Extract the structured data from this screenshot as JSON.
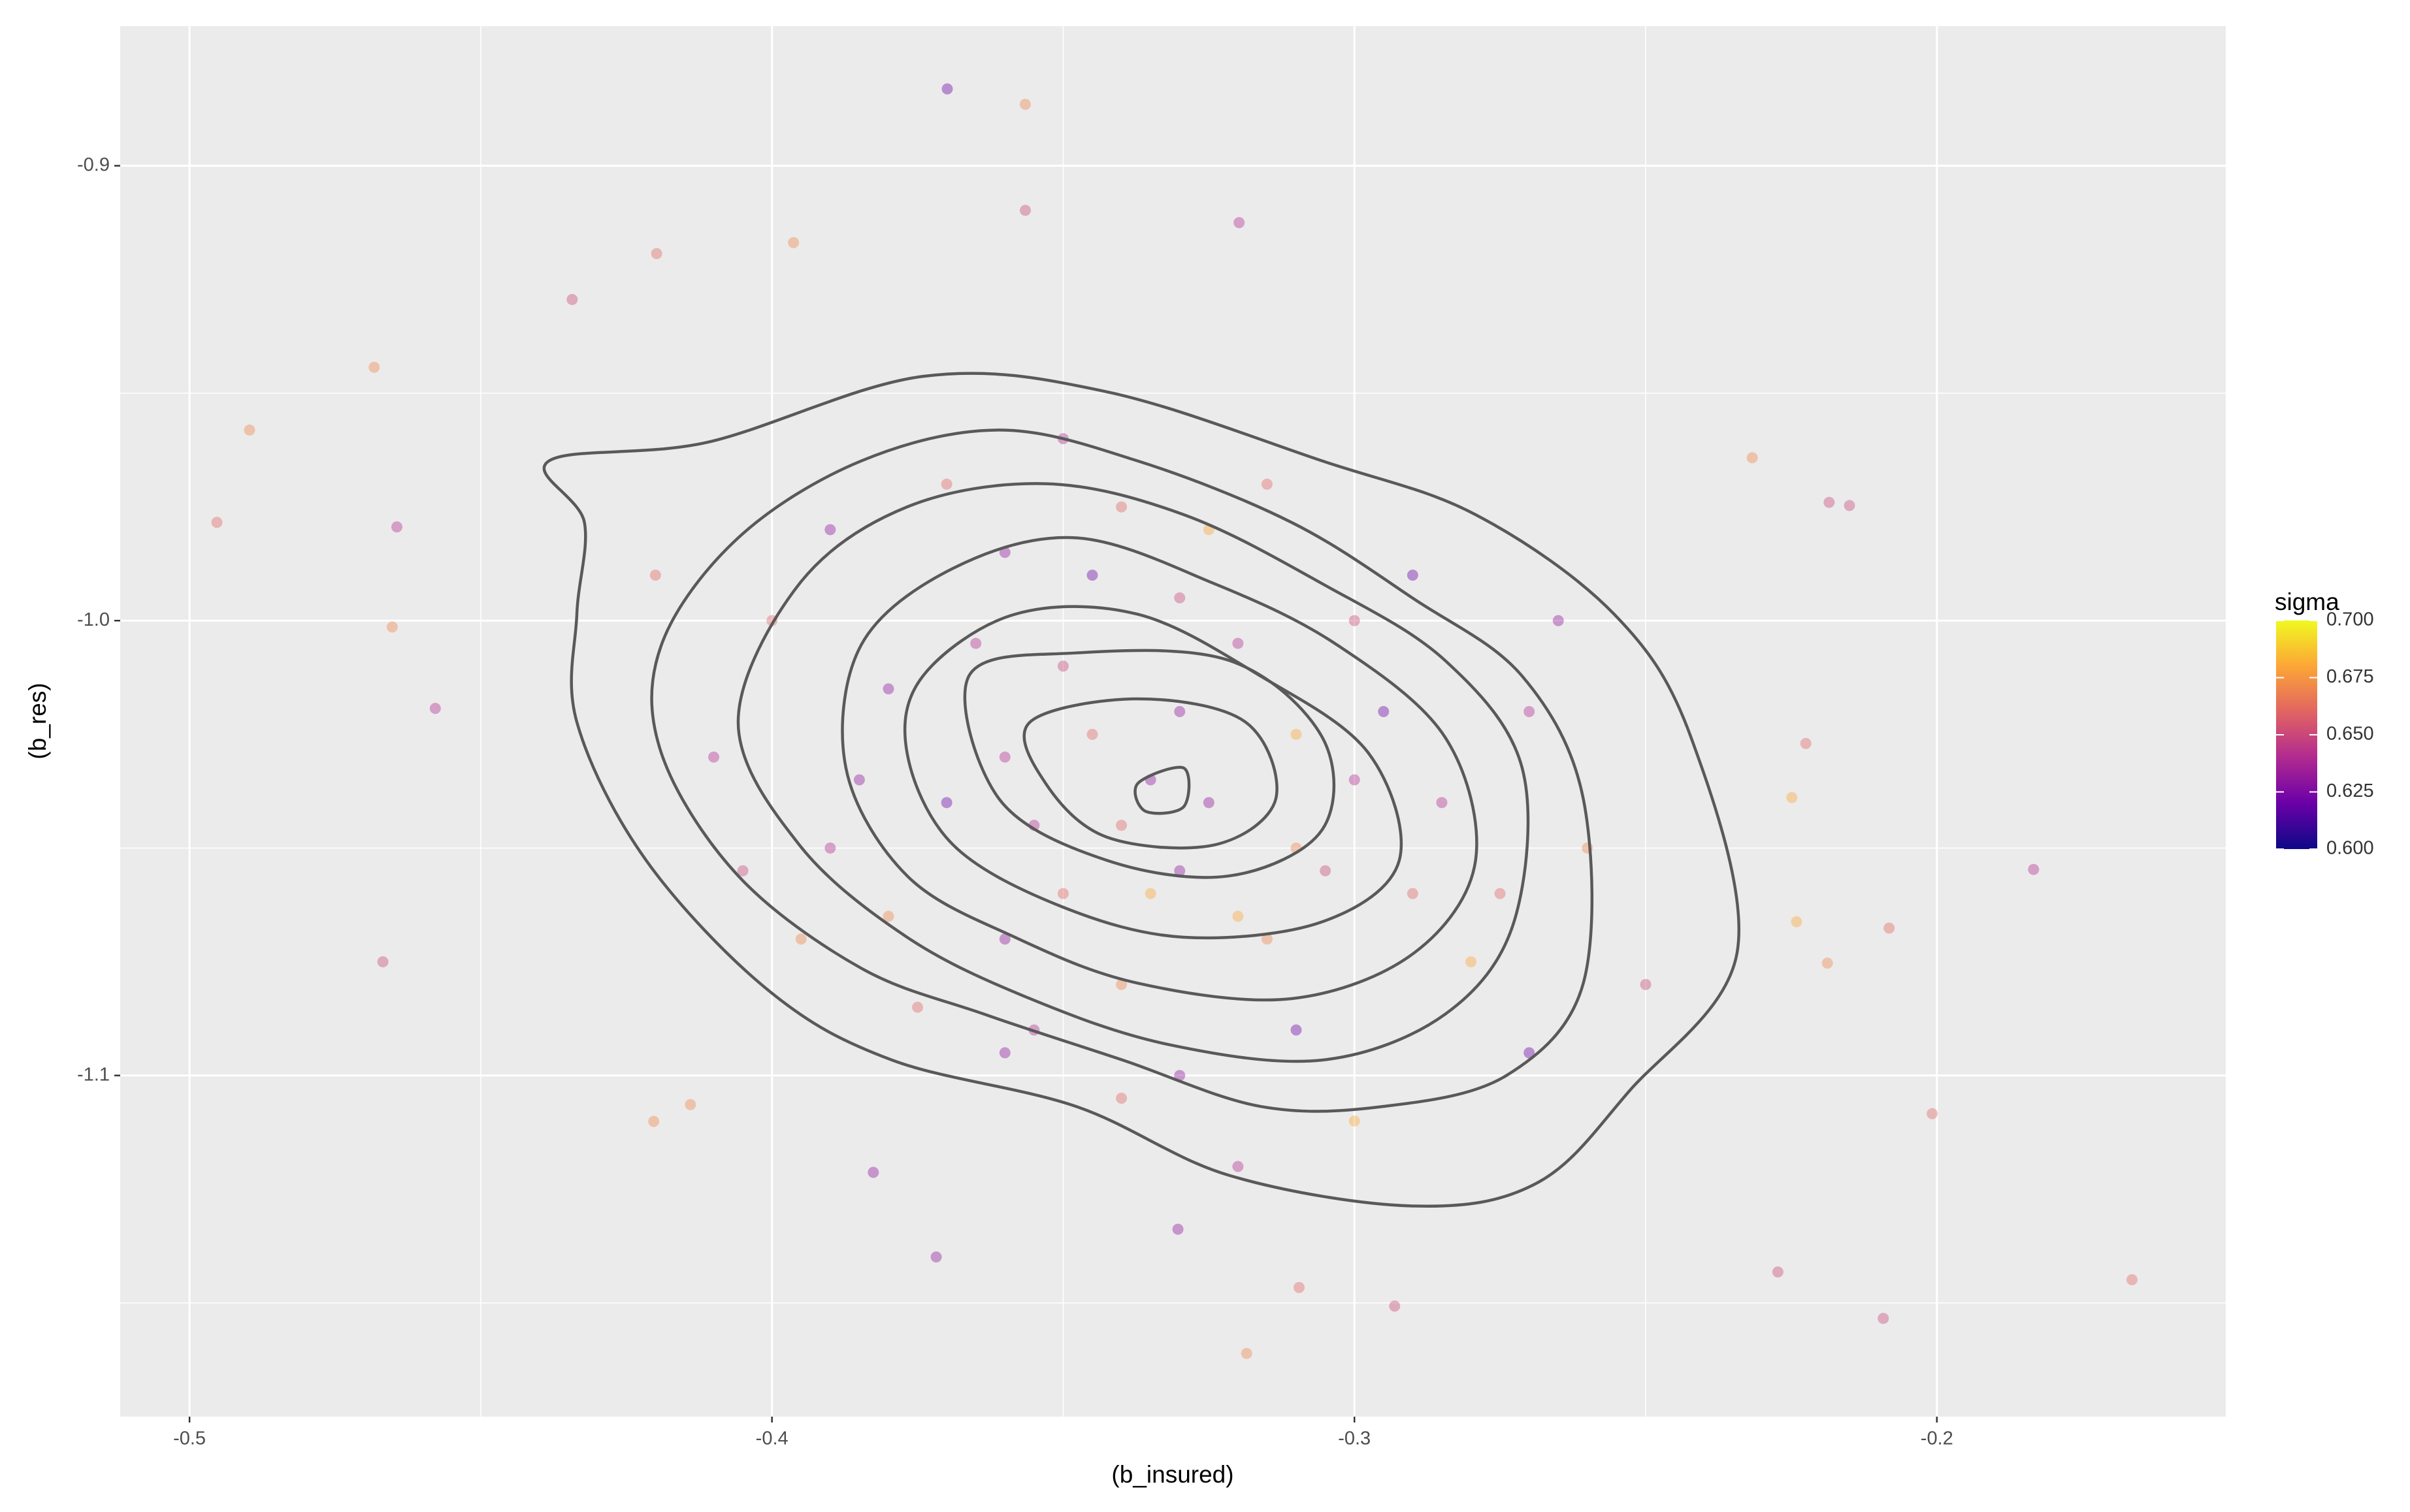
{
  "chart_data": {
    "type": "scatter",
    "x_label": "(b_insured)",
    "y_label": "(b_res)",
    "xlim": [
      -0.5119,
      -0.1504
    ],
    "ylim": [
      -1.175,
      -0.8693
    ],
    "xticks": [
      -0.5,
      -0.4,
      -0.3,
      -0.2
    ],
    "yticks": [
      -0.9,
      {
        "value": -1,
        "label": "-1.0"
      },
      -1.1
    ],
    "grid": true,
    "color_label": "sigma",
    "clim": [
      0.6,
      0.7
    ],
    "colorscale": [
      "#0d0887",
      "#6a00a8",
      "#b12a90",
      "#e16462",
      "#fca636",
      "#f0f921"
    ],
    "cticks": [
      {
        "value": 0.7,
        "label": "0.700"
      },
      0.675,
      {
        "value": 0.65,
        "label": "0.650"
      },
      0.625,
      {
        "value": 0.6,
        "label": "0.600"
      }
    ],
    "x": [
      -0.36,
      -0.34,
      -0.33,
      -0.31,
      -0.35,
      -0.37,
      -0.32,
      -0.3,
      -0.29,
      -0.38,
      -0.39,
      -0.4,
      -0.36,
      -0.34,
      -0.33,
      -0.31,
      -0.28,
      -0.27,
      -0.35,
      -0.33,
      -0.32,
      -0.34,
      -0.36,
      -0.38,
      -0.3,
      -0.29,
      -0.31,
      -0.35,
      -0.37,
      -0.33,
      -0.41,
      -0.42,
      -0.39,
      -0.26,
      -0.25,
      -0.27,
      -0.3,
      -0.32,
      -0.34,
      -0.36,
      -0.355,
      -0.345,
      -0.325,
      -0.315,
      -0.305,
      -0.295,
      -0.335,
      -0.365,
      -0.375,
      -0.385,
      -0.285,
      -0.275,
      -0.265,
      -0.395,
      -0.405,
      -0.345,
      -0.325,
      -0.355,
      -0.315,
      -0.335,
      -0.3699,
      -0.3565,
      -0.4953,
      -0.4897,
      -0.4683,
      -0.4644,
      -0.4652,
      -0.4578,
      -0.4668,
      -0.1834,
      -0.1665,
      -0.2092,
      -0.2008,
      -0.2082,
      -0.2317,
      -0.2185,
      -0.215,
      -0.3185,
      -0.3718,
      -0.3963,
      -0.4198,
      -0.3198,
      -0.3565,
      -0.4343,
      -0.2249,
      -0.2225,
      -0.2241,
      -0.2188,
      -0.2931,
      -0.3095,
      -0.3303,
      -0.2273,
      -0.3826,
      -0.414,
      -0.4203
    ],
    "y": [
      -1.03,
      -1.045,
      -1.02,
      -1.05,
      -1.01,
      -1.04,
      -1.065,
      -1.035,
      -1.06,
      -1.015,
      -1.05,
      -1.0,
      -0.985,
      -1.08,
      -0.995,
      -1.09,
      -1.075,
      -1.02,
      -1.06,
      -1.055,
      -1.005,
      -0.975,
      -1.07,
      -1.065,
      -1.0,
      -0.99,
      -1.025,
      -0.96,
      -0.97,
      -1.1,
      -1.03,
      -0.99,
      -0.98,
      -1.05,
      -1.08,
      -1.095,
      -1.11,
      -1.12,
      -1.105,
      -1.095,
      -1.045,
      -1.025,
      -1.04,
      -1.07,
      -1.055,
      -1.02,
      -1.06,
      -1.005,
      -1.085,
      -1.035,
      -1.04,
      -1.06,
      -1.0,
      -1.07,
      -1.055,
      -0.99,
      -0.98,
      -1.09,
      -0.97,
      -1.035,
      -0.8831,
      -0.8865,
      -0.9784,
      -0.9581,
      -0.9443,
      -0.9794,
      -1.0014,
      -1.0193,
      -1.075,
      -1.0547,
      -1.1449,
      -1.1534,
      -1.1084,
      -1.0676,
      -0.9642,
      -0.974,
      -0.9747,
      -1.1611,
      -1.1399,
      -0.9169,
      -0.9193,
      -0.9125,
      -0.9098,
      -0.9294,
      -1.0389,
      -1.027,
      -1.0662,
      -1.0753,
      -1.1507,
      -1.1466,
      -1.1338,
      -1.1432,
      -1.1213,
      -1.1064,
      -1.1101
    ],
    "sigma": [
      0.64,
      0.66,
      0.63,
      0.67,
      0.65,
      0.62,
      0.68,
      0.64,
      0.66,
      0.63,
      0.64,
      0.66,
      0.63,
      0.67,
      0.65,
      0.62,
      0.68,
      0.64,
      0.66,
      0.63,
      0.64,
      0.66,
      0.63,
      0.67,
      0.65,
      0.62,
      0.68,
      0.64,
      0.66,
      0.63,
      0.64,
      0.66,
      0.63,
      0.67,
      0.65,
      0.62,
      0.68,
      0.64,
      0.66,
      0.63,
      0.64,
      0.66,
      0.63,
      0.67,
      0.65,
      0.62,
      0.68,
      0.64,
      0.66,
      0.63,
      0.64,
      0.66,
      0.63,
      0.67,
      0.65,
      0.62,
      0.68,
      0.64,
      0.66,
      0.63,
      0.62,
      0.67,
      0.66,
      0.67,
      0.67,
      0.64,
      0.67,
      0.64,
      0.65,
      0.64,
      0.66,
      0.65,
      0.66,
      0.66,
      0.67,
      0.65,
      0.65,
      0.67,
      0.63,
      0.67,
      0.66,
      0.64,
      0.65,
      0.65,
      0.68,
      0.66,
      0.68,
      0.67,
      0.65,
      0.66,
      0.63,
      0.65,
      0.63,
      0.67,
      0.67
    ],
    "contours": [
      {
        "x": [
          -0.4383,
          -0.4111,
          -0.3741,
          -0.3425,
          -0.3055,
          -0.2792,
          -0.2554,
          -0.2422,
          -0.2343,
          -0.2528,
          -0.2686,
          -0.2897,
          -0.3214,
          -0.3478,
          -0.3794,
          -0.4005,
          -0.4216,
          -0.4335,
          -0.4335,
          -0.4322
        ],
        "y": [
          -0.9649,
          -0.9608,
          -0.9463,
          -0.9497,
          -0.9649,
          -0.9767,
          -0.9986,
          -1.0257,
          -1.073,
          -1.1034,
          -1.1236,
          -1.1287,
          -1.122,
          -1.1068,
          -1.0966,
          -1.0814,
          -1.0527,
          -1.0223,
          -0.9986,
          -0.9784
        ]
      },
      {
        "x": [
          -0.4058,
          -0.3847,
          -0.361,
          -0.3372,
          -0.3108,
          -0.2897,
          -0.2712,
          -0.2607,
          -0.2607,
          -0.2739,
          -0.295,
          -0.3161,
          -0.3398,
          -0.3636,
          -0.3847,
          -0.4058,
          -0.419,
          -0.419
        ],
        "y": [
          -0.9818,
          -0.9649,
          -0.9581,
          -0.9649,
          -0.9784,
          -0.9953,
          -1.0122,
          -1.0392,
          -1.0797,
          -1.1,
          -1.1068,
          -1.1068,
          -1.0966,
          -1.0865,
          -1.0764,
          -1.0561,
          -1.0291,
          -1.0054
        ]
      },
      {
        "x": [
          -0.3953,
          -0.3768,
          -0.353,
          -0.3293,
          -0.3055,
          -0.2844,
          -0.2712,
          -0.2726,
          -0.2844,
          -0.3055,
          -0.3319,
          -0.3557,
          -0.3768,
          -0.3953,
          -0.4058
        ],
        "y": [
          -0.9919,
          -0.975,
          -0.9699,
          -0.9767,
          -0.9919,
          -1.0088,
          -1.0324,
          -1.0662,
          -1.0865,
          -1.0966,
          -1.0932,
          -1.0831,
          -1.0696,
          -1.0493,
          -1.0223
        ]
      },
      {
        "x": [
          -0.3847,
          -0.3689,
          -0.3478,
          -0.324,
          -0.3029,
          -0.2844,
          -0.2792,
          -0.2897,
          -0.3108,
          -0.3372,
          -0.3583,
          -0.3768,
          -0.3873
        ],
        "y": [
          -1.0054,
          -0.9885,
          -0.9818,
          -0.9919,
          -1.0054,
          -1.0257,
          -1.0527,
          -1.073,
          -1.0831,
          -1.0797,
          -1.0696,
          -1.0561,
          -1.0324
        ]
      },
      {
        "x": [
          -0.3741,
          -0.3583,
          -0.3372,
          -0.3161,
          -0.2976,
          -0.2923,
          -0.3055,
          -0.3293,
          -0.3504,
          -0.3689,
          -0.3768
        ],
        "y": [
          -1.0122,
          -0.9986,
          -0.9986,
          -1.0122,
          -1.0291,
          -1.0527,
          -1.0662,
          -1.0696,
          -1.0628,
          -1.0493,
          -1.0291
        ]
      },
      {
        "x": [
          -0.3662,
          -0.3478,
          -0.3214,
          -0.3055,
          -0.3055,
          -0.3214,
          -0.3425,
          -0.361
        ],
        "y": [
          -1.0122,
          -1.0071,
          -1.0088,
          -1.0257,
          -1.0459,
          -1.0561,
          -1.0527,
          -1.0392
        ]
      },
      {
        "x": [
          -0.3557,
          -0.3372,
          -0.3187,
          -0.3135,
          -0.324,
          -0.3425,
          -0.353
        ],
        "y": [
          -1.0223,
          -1.0172,
          -1.0223,
          -1.0392,
          -1.0493,
          -1.0476,
          -1.0358
        ]
      },
      {
        "x": [
          -0.3372,
          -0.3293,
          -0.3293,
          -0.3359
        ],
        "y": [
          -1.0358,
          -1.0324,
          -1.0409,
          -1.0419
        ]
      }
    ]
  }
}
